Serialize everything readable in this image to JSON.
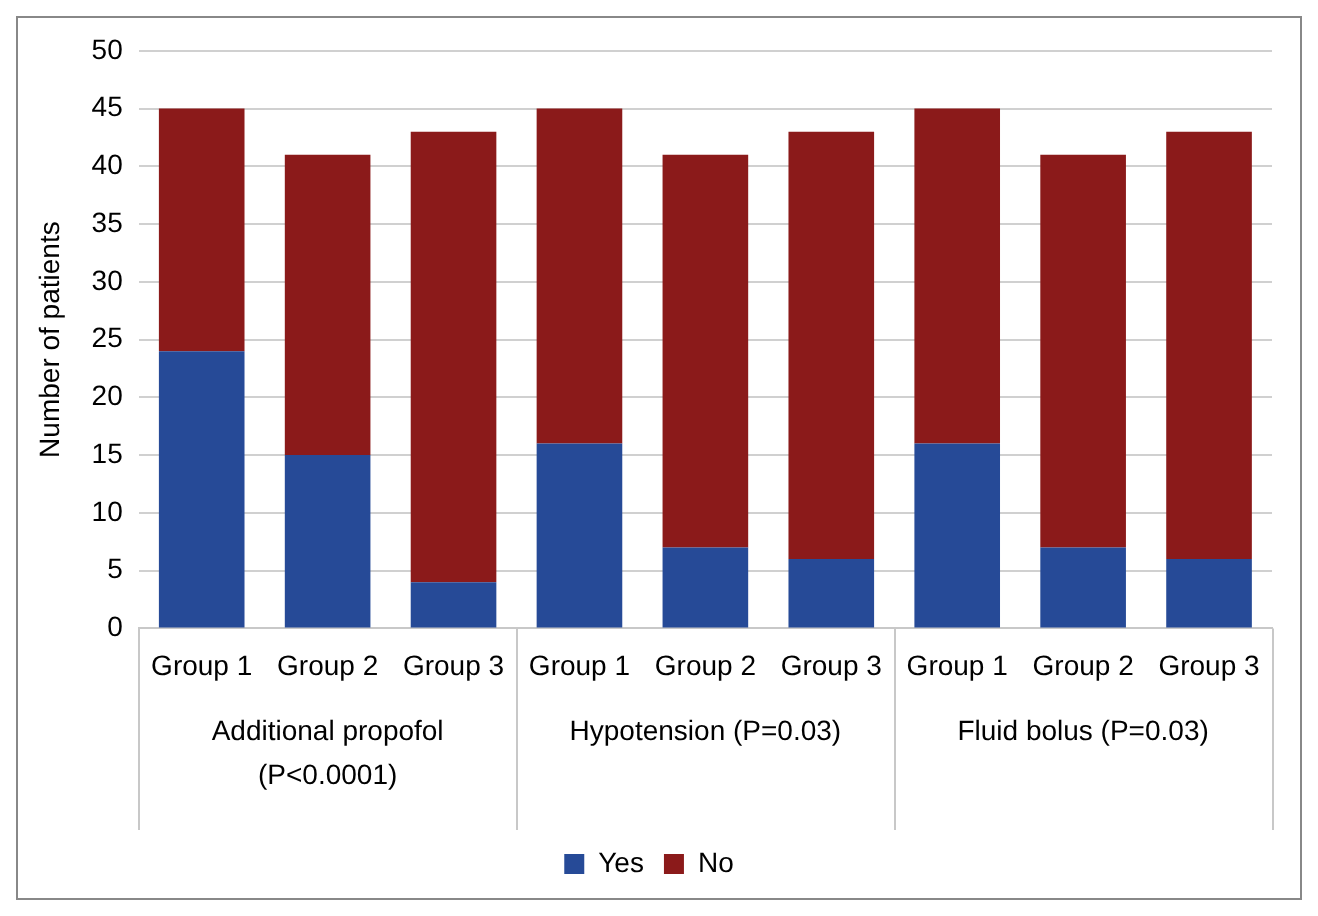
{
  "chart_data": {
    "type": "bar",
    "stacked": true,
    "ylabel": "Number of patients",
    "categories": [
      "Group 1",
      "Group 2",
      "Group 3",
      "Group 1",
      "Group 2",
      "Group 3",
      "Group 1",
      "Group 2",
      "Group 3"
    ],
    "series": [
      {
        "name": "Yes",
        "color": "#264a97",
        "values": [
          24,
          15,
          4,
          16,
          7,
          6,
          16,
          7,
          6
        ]
      },
      {
        "name": "No",
        "color": "#8b1a1a",
        "values": [
          21,
          26,
          39,
          29,
          34,
          37,
          29,
          34,
          37
        ]
      }
    ],
    "ylim": [
      0,
      50
    ],
    "yticks": [
      0,
      5,
      10,
      15,
      20,
      25,
      30,
      35,
      40,
      45,
      50
    ],
    "grid": "y",
    "legend": "bottom",
    "annotations": [
      "Additional propofol (P<0.0001)",
      "Hypotension (P=0.03)",
      "Fluid bolus (P=0.03)"
    ]
  }
}
